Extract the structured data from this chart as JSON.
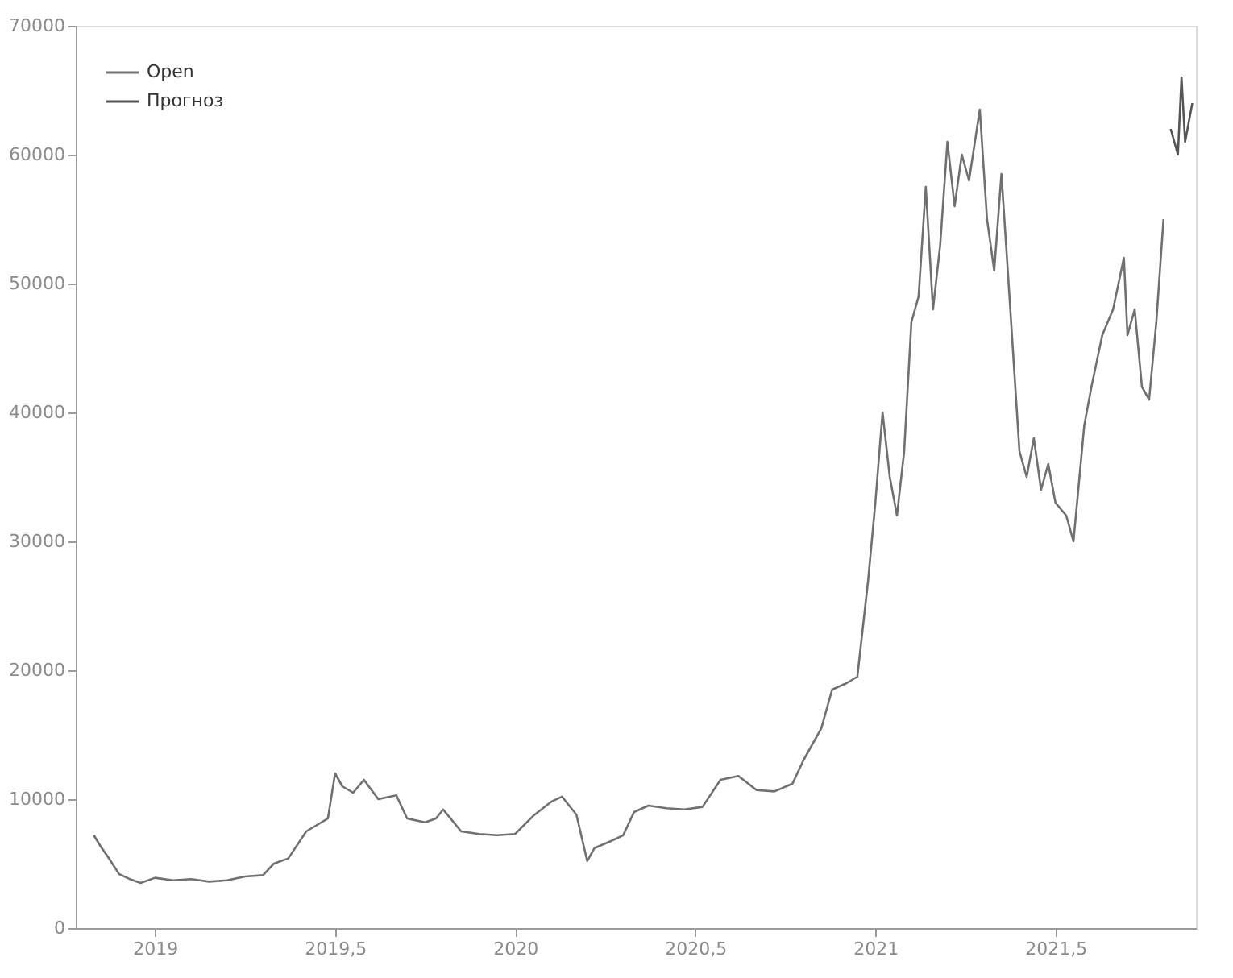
{
  "chart_data": {
    "type": "line",
    "xlim": [
      2018.78,
      2021.89
    ],
    "ylim": [
      0,
      70000
    ],
    "xticks": [
      2019,
      {
        "value": 2019.5,
        "label": "2019,5"
      },
      2020,
      {
        "value": 2020.5,
        "label": "2020,5"
      },
      2021,
      {
        "value": 2021.5,
        "label": "2021,5"
      }
    ],
    "yticks": [
      0,
      10000,
      20000,
      30000,
      40000,
      50000,
      60000,
      70000
    ],
    "legend": "top left",
    "line_style": "solid",
    "marker": "none",
    "series": [
      {
        "name": "Open",
        "color": "#707070",
        "x": [
          2018.83,
          2018.85,
          2018.87,
          2018.9,
          2018.93,
          2018.96,
          2019.0,
          2019.05,
          2019.1,
          2019.15,
          2019.2,
          2019.25,
          2019.3,
          2019.33,
          2019.37,
          2019.42,
          2019.45,
          2019.48,
          2019.5,
          2019.52,
          2019.55,
          2019.58,
          2019.62,
          2019.67,
          2019.7,
          2019.75,
          2019.78,
          2019.8,
          2019.85,
          2019.9,
          2019.95,
          2020.0,
          2020.05,
          2020.1,
          2020.13,
          2020.17,
          2020.2,
          2020.22,
          2020.27,
          2020.3,
          2020.33,
          2020.37,
          2020.42,
          2020.47,
          2020.52,
          2020.57,
          2020.62,
          2020.67,
          2020.72,
          2020.77,
          2020.8,
          2020.85,
          2020.88,
          2020.92,
          2020.95,
          2020.98,
          2021.0,
          2021.02,
          2021.04,
          2021.06,
          2021.08,
          2021.1,
          2021.12,
          2021.14,
          2021.16,
          2021.18,
          2021.2,
          2021.22,
          2021.24,
          2021.26,
          2021.29,
          2021.31,
          2021.33,
          2021.35,
          2021.37,
          2021.4,
          2021.42,
          2021.44,
          2021.46,
          2021.48,
          2021.5,
          2021.53,
          2021.55,
          2021.58,
          2021.6,
          2021.63,
          2021.66,
          2021.69,
          2021.7,
          2021.72,
          2021.74,
          2021.76,
          2021.78,
          2021.8
        ],
        "values": [
          7200,
          6300,
          5500,
          4200,
          3800,
          3500,
          3900,
          3700,
          3800,
          3600,
          3700,
          4000,
          4100,
          5000,
          5400,
          7500,
          8000,
          8500,
          12000,
          11000,
          10500,
          11500,
          10000,
          10300,
          8500,
          8200,
          8500,
          9200,
          7500,
          7300,
          7200,
          7300,
          8700,
          9800,
          10200,
          8800,
          5200,
          6200,
          6800,
          7200,
          9000,
          9500,
          9300,
          9200,
          9400,
          11500,
          11800,
          10700,
          10600,
          11200,
          13000,
          15500,
          18500,
          19000,
          19500,
          27000,
          33000,
          40000,
          35000,
          32000,
          37000,
          47000,
          49000,
          57500,
          48000,
          53000,
          61000,
          56000,
          60000,
          58000,
          63500,
          55000,
          51000,
          58500,
          50000,
          37000,
          35000,
          38000,
          34000,
          36000,
          33000,
          32000,
          30000,
          39000,
          42000,
          46000,
          48000,
          52000,
          46000,
          48000,
          42000,
          41000,
          47000,
          55000
        ]
      },
      {
        "name": "Прогноз",
        "color": "#555555",
        "x": [
          2021.82,
          2021.84,
          2021.85,
          2021.86,
          2021.88
        ],
        "values": [
          62000,
          60000,
          66000,
          61000,
          64000
        ]
      }
    ]
  }
}
